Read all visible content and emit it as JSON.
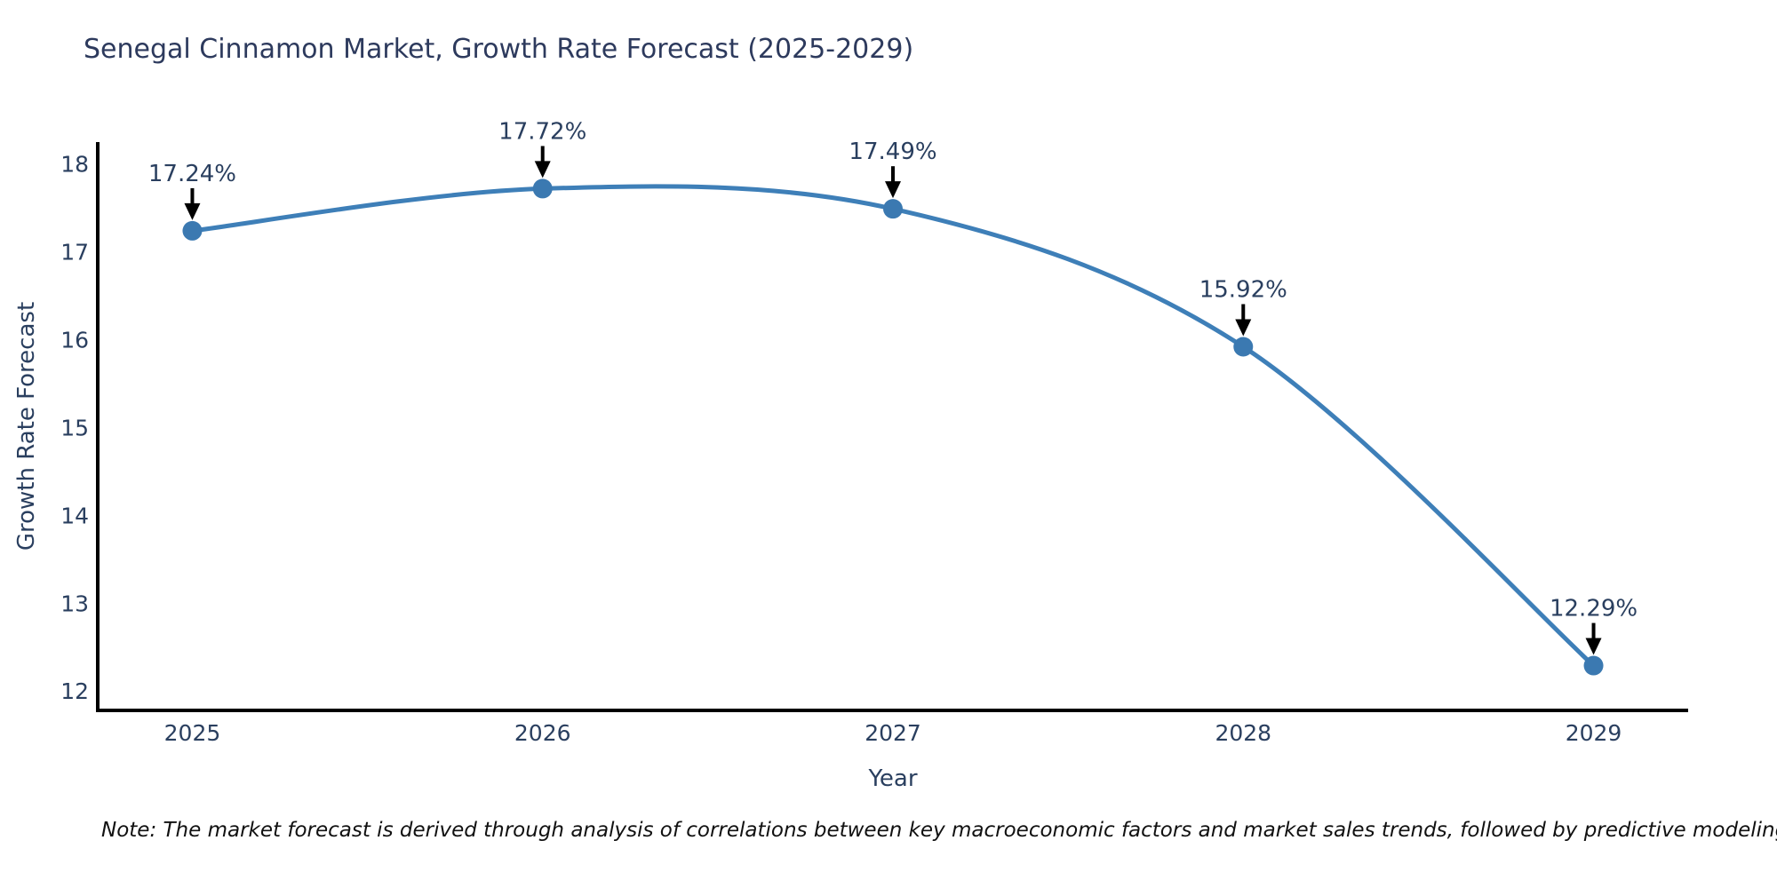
{
  "header": {
    "title": "Senegal Cinnamon Market, Growth Rate Forecast (2025-2029)"
  },
  "chart_data": {
    "type": "line",
    "line_shape": "spline",
    "x": [
      2025,
      2026,
      2027,
      2028,
      2029
    ],
    "values": [
      17.24,
      17.72,
      17.49,
      15.92,
      12.29
    ],
    "point_labels": [
      "17.24%",
      "17.72%",
      "17.49%",
      "15.92%",
      "12.29%"
    ],
    "title": "Senegal Cinnamon Market, Growth Rate Forecast (2025-2029)",
    "xlabel": "Year",
    "ylabel": "Growth Rate Forecast",
    "xticks": [
      2025,
      2026,
      2027,
      2028,
      2029
    ],
    "yticks": [
      12,
      13,
      14,
      15,
      16,
      17,
      18
    ],
    "xlim": [
      2024.73,
      2029.27
    ],
    "ylim": [
      11.78,
      18.25
    ],
    "grid": false,
    "legend_position": "none",
    "colors": {
      "line": "#3E7FB8",
      "marker": "#3B79B1",
      "axis": "#000000",
      "tick_text": "#2a3f5f",
      "annotation_text": "#2a3f5f",
      "arrow": "#000000"
    }
  },
  "footer": {
    "note": "Note: The market forecast is derived through analysis of correlations between key macroeconomic factors and market sales trends, followed by predictive modeling to project future sales"
  }
}
